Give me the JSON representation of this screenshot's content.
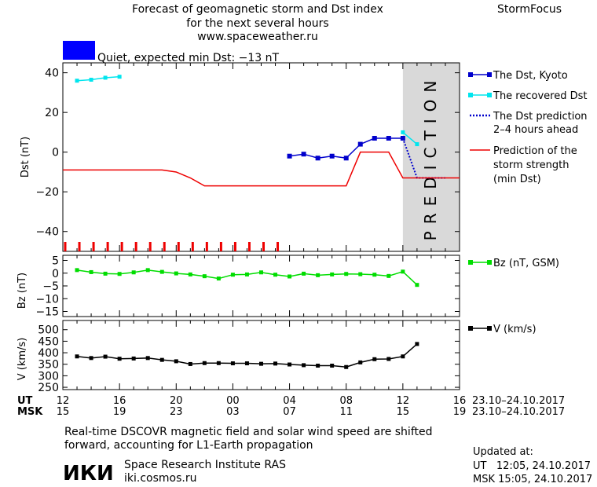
{
  "header": {
    "title_line1": "Forecast of geomagnetic storm and Dst index",
    "title_line2": "for the next several hours",
    "title_line3": "www.spaceweather.ru",
    "brand": "StormFocus"
  },
  "status": {
    "label": "Quiet, expected min Dst: −13 nT",
    "color": "#0000ff"
  },
  "prediction_band_text": "PREDICTION",
  "legend": {
    "dst_kyoto": "The Dst, Kyoto",
    "dst_recovered": "The recovered Dst",
    "dst_prediction_l1": "The Dst prediction",
    "dst_prediction_l2": "2–4 hours ahead",
    "storm_l1": "Prediction of the",
    "storm_l2": "storm strength",
    "storm_l3": "(min Dst)",
    "bz": "Bz (nT, GSM)",
    "v": "V (km/s)"
  },
  "axis_rows": {
    "ut_label": "UT",
    "msk_label": "MSK",
    "date_range_ut": "23.10–24.10.2017",
    "date_range_msk": "23.10–24.10.2017"
  },
  "footer": {
    "note_line1": "Real-time DSCOVR magnetic field and solar wind speed are shifted",
    "note_line2": "forward, accounting for L1-Earth propagation",
    "logo_text": "ИКИ",
    "org_name": "Space Research Institute RAS",
    "org_url": "iki.cosmos.ru",
    "updated_label": "Updated at:",
    "updated_ut": "UT   12:05, 24.10.2017",
    "updated_msk": "MSK 15:05, 24.10.2017"
  },
  "colors": {
    "dst_kyoto": "#0000cc",
    "dst_recovered": "#00e5ee",
    "storm": "#ee0000",
    "bz": "#00dd00",
    "v": "#000000",
    "prediction_band": "#d9d9d9"
  },
  "chart_data": [
    {
      "type": "line",
      "ylabel": "Dst (nT)",
      "xlim": [
        12,
        40
      ],
      "ylim": [
        -50,
        45
      ],
      "yticks": [
        40,
        20,
        0,
        -20,
        -40
      ],
      "x_ticks_ut": [
        12,
        16,
        20,
        24,
        28,
        32,
        36,
        40
      ],
      "x_tick_labels_ut": [
        "12",
        "16",
        "20",
        "00",
        "04",
        "08",
        "12",
        "16"
      ],
      "x_tick_labels_msk": [
        "15",
        "19",
        "23",
        "03",
        "07",
        "11",
        "15",
        "19"
      ],
      "prediction_region_x": [
        36,
        40
      ],
      "series": [
        {
          "name": "The Dst, Kyoto",
          "x": [
            28,
            29,
            30,
            31,
            32,
            33,
            34,
            35,
            36
          ],
          "y": [
            -2,
            -1,
            -3,
            -2,
            -3,
            4,
            7,
            7,
            7
          ]
        },
        {
          "name": "The recovered Dst",
          "x": [
            13,
            14,
            15,
            16,
            36,
            37
          ],
          "y": [
            36,
            36.5,
            37.5,
            38,
            10,
            4
          ]
        },
        {
          "name": "The Dst prediction 2–4 hours ahead",
          "x": [
            36,
            37,
            38,
            39
          ],
          "y": [
            7,
            -13,
            -13,
            -13
          ]
        },
        {
          "name": "Prediction of the storm strength (min Dst)",
          "x": [
            12,
            16,
            19,
            20,
            21,
            22,
            25,
            28,
            32,
            33,
            35,
            36,
            38,
            40
          ],
          "y": [
            -9,
            -9,
            -9,
            -10,
            -13,
            -17,
            -17,
            -17,
            -17,
            0,
            0,
            -13,
            -13,
            -13
          ]
        }
      ],
      "event_markers_x": [
        12,
        13,
        14,
        15,
        16,
        17,
        18,
        19,
        20,
        21,
        22,
        23,
        24,
        25,
        26,
        27
      ]
    },
    {
      "type": "line",
      "ylabel": "Bz (nT)",
      "xlim": [
        12,
        40
      ],
      "ylim": [
        -17,
        7
      ],
      "yticks": [
        5,
        0,
        -5,
        -10,
        -15
      ],
      "series": [
        {
          "name": "Bz (nT, GSM)",
          "x": [
            13,
            14,
            15,
            16,
            17,
            18,
            19,
            20,
            21,
            22,
            23,
            24,
            25,
            26,
            27,
            28,
            29,
            30,
            31,
            32,
            33,
            34,
            35,
            36,
            37
          ],
          "y": [
            1.2,
            0.4,
            -0.2,
            -0.3,
            0.3,
            1.2,
            0.5,
            -0.1,
            -0.5,
            -1.2,
            -2.1,
            -0.6,
            -0.5,
            0.3,
            -0.6,
            -1.3,
            -0.2,
            -0.8,
            -0.5,
            -0.3,
            -0.4,
            -0.6,
            -1.1,
            0.6,
            -4.6
          ]
        }
      ]
    },
    {
      "type": "line",
      "ylabel": "V (km/s)",
      "xlim": [
        12,
        40
      ],
      "ylim": [
        240,
        540
      ],
      "yticks": [
        500,
        450,
        400,
        350,
        300,
        250
      ],
      "series": [
        {
          "name": "V (km/s)",
          "x": [
            13,
            14,
            15,
            16,
            17,
            18,
            19,
            20,
            21,
            22,
            23,
            24,
            25,
            26,
            27,
            28,
            29,
            30,
            31,
            32,
            33,
            34,
            35,
            36,
            37
          ],
          "y": [
            384,
            377,
            383,
            374,
            375,
            377,
            369,
            363,
            351,
            355,
            355,
            354,
            354,
            352,
            353,
            349,
            346,
            344,
            344,
            338,
            358,
            372,
            373,
            384,
            438
          ]
        }
      ]
    }
  ]
}
